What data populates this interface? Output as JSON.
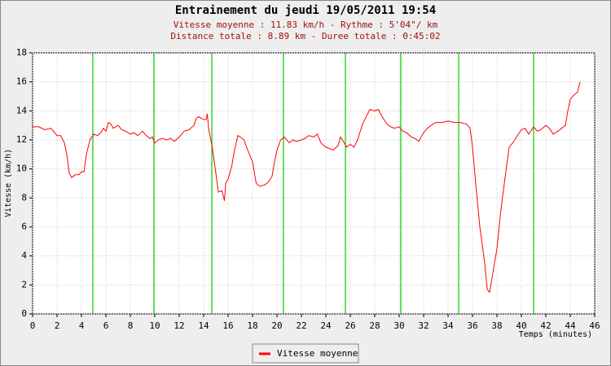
{
  "chart_data": {
    "type": "line",
    "title": "Entrainement du jeudi 19/05/2011 19:54",
    "subtitle": [
      "Vitesse moyenne : 11.83 km/h - Rythme : 5'04\"/ km",
      "Distance totale : 8.89 km - Duree totale : 0:45:02"
    ],
    "ylabel": "Vitesse (km/h)",
    "xlabel": "Temps (minutes)",
    "x": [
      0,
      0.5,
      1,
      1.5,
      2,
      2.3,
      2.6,
      2.8,
      3,
      3.2,
      3.5,
      3.8,
      4,
      4.2,
      4.4,
      4.7,
      5,
      5.3,
      5.6,
      5.8,
      6,
      6.2,
      6.4,
      6.6,
      7,
      7.3,
      7.6,
      8,
      8.3,
      8.6,
      9,
      9.3,
      9.6,
      9.8,
      10,
      10.3,
      10.6,
      11,
      11.3,
      11.6,
      12,
      12.4,
      12.8,
      13.2,
      13.4,
      13.6,
      14,
      14.2,
      14.3,
      14.4,
      14.7,
      15,
      15.2,
      15.5,
      15.7,
      15.8,
      16,
      16.3,
      16.5,
      16.8,
      17,
      17.3,
      17.6,
      18,
      18.3,
      18.6,
      19,
      19.3,
      19.6,
      19.8,
      20,
      20.3,
      20.6,
      21,
      21.3,
      21.6,
      22,
      22.3,
      22.6,
      23,
      23.3,
      23.6,
      24,
      24.3,
      24.6,
      25,
      25.2,
      25.5,
      25.7,
      26,
      26.3,
      26.6,
      27,
      27.3,
      27.6,
      28,
      28.3,
      28.6,
      29,
      29.3,
      29.6,
      30,
      30.3,
      30.6,
      31,
      31.3,
      31.6,
      32,
      32.3,
      32.6,
      33,
      33.5,
      34,
      34.5,
      35,
      35.5,
      35.8,
      36,
      36.3,
      36.6,
      37,
      37.2,
      37.4,
      37.6,
      38,
      38.3,
      38.6,
      39,
      39.3,
      39.6,
      40,
      40.3,
      40.6,
      41,
      41.3,
      41.6,
      42,
      42.3,
      42.6,
      43,
      43.3,
      43.6,
      43.8,
      44,
      44.3,
      44.6,
      44.8
    ],
    "series": [
      {
        "name": "Vitesse moyenne",
        "color": "#ff0000",
        "values": [
          12.9,
          12.9,
          12.7,
          12.8,
          12.3,
          12.3,
          11.8,
          11.0,
          9.7,
          9.4,
          9.6,
          9.6,
          9.8,
          9.8,
          11.0,
          12.0,
          12.4,
          12.3,
          12.5,
          12.8,
          12.6,
          13.2,
          13.1,
          12.8,
          13.0,
          12.7,
          12.6,
          12.4,
          12.5,
          12.3,
          12.6,
          12.3,
          12.1,
          12.2,
          11.8,
          12.0,
          12.1,
          12.0,
          12.1,
          11.9,
          12.2,
          12.6,
          12.7,
          13.0,
          13.5,
          13.6,
          13.4,
          13.4,
          13.8,
          12.8,
          11.5,
          9.7,
          8.4,
          8.5,
          7.8,
          9.0,
          9.3,
          10.2,
          11.2,
          12.3,
          12.2,
          12.0,
          11.3,
          10.5,
          9.0,
          8.8,
          8.9,
          9.1,
          9.5,
          10.5,
          11.3,
          12.0,
          12.2,
          11.8,
          12.0,
          11.9,
          12.0,
          12.1,
          12.3,
          12.2,
          12.4,
          11.8,
          11.5,
          11.4,
          11.3,
          11.6,
          12.2,
          11.8,
          11.5,
          11.7,
          11.5,
          12.0,
          13.1,
          13.6,
          14.1,
          14.0,
          14.1,
          13.6,
          13.1,
          12.9,
          12.8,
          12.9,
          12.6,
          12.5,
          12.2,
          12.1,
          11.9,
          12.5,
          12.8,
          13.0,
          13.2,
          13.2,
          13.3,
          13.2,
          13.2,
          13.1,
          12.8,
          11.5,
          8.6,
          6.0,
          3.5,
          1.7,
          1.5,
          2.5,
          4.5,
          7.0,
          9.0,
          11.5,
          11.8,
          12.2,
          12.7,
          12.8,
          12.4,
          12.9,
          12.6,
          12.7,
          13.0,
          12.8,
          12.4,
          12.6,
          12.8,
          13.0,
          14.0,
          14.8,
          15.1,
          15.3,
          16.0
        ]
      }
    ],
    "markers": {
      "color": "#00cc00",
      "x": [
        4.93,
        9.93,
        14.67,
        20.53,
        25.6,
        30.13,
        34.87,
        41.0
      ]
    },
    "xlim": [
      0,
      46
    ],
    "xticks": [
      0,
      2,
      4,
      6,
      8,
      10,
      12,
      14,
      16,
      18,
      20,
      22,
      24,
      26,
      28,
      30,
      32,
      34,
      36,
      38,
      40,
      42,
      44,
      46
    ],
    "ylim": [
      0,
      18
    ],
    "yticks": [
      0,
      2,
      4,
      6,
      8,
      10,
      12,
      14,
      16,
      18
    ],
    "grid": true,
    "legend": "bottom"
  }
}
